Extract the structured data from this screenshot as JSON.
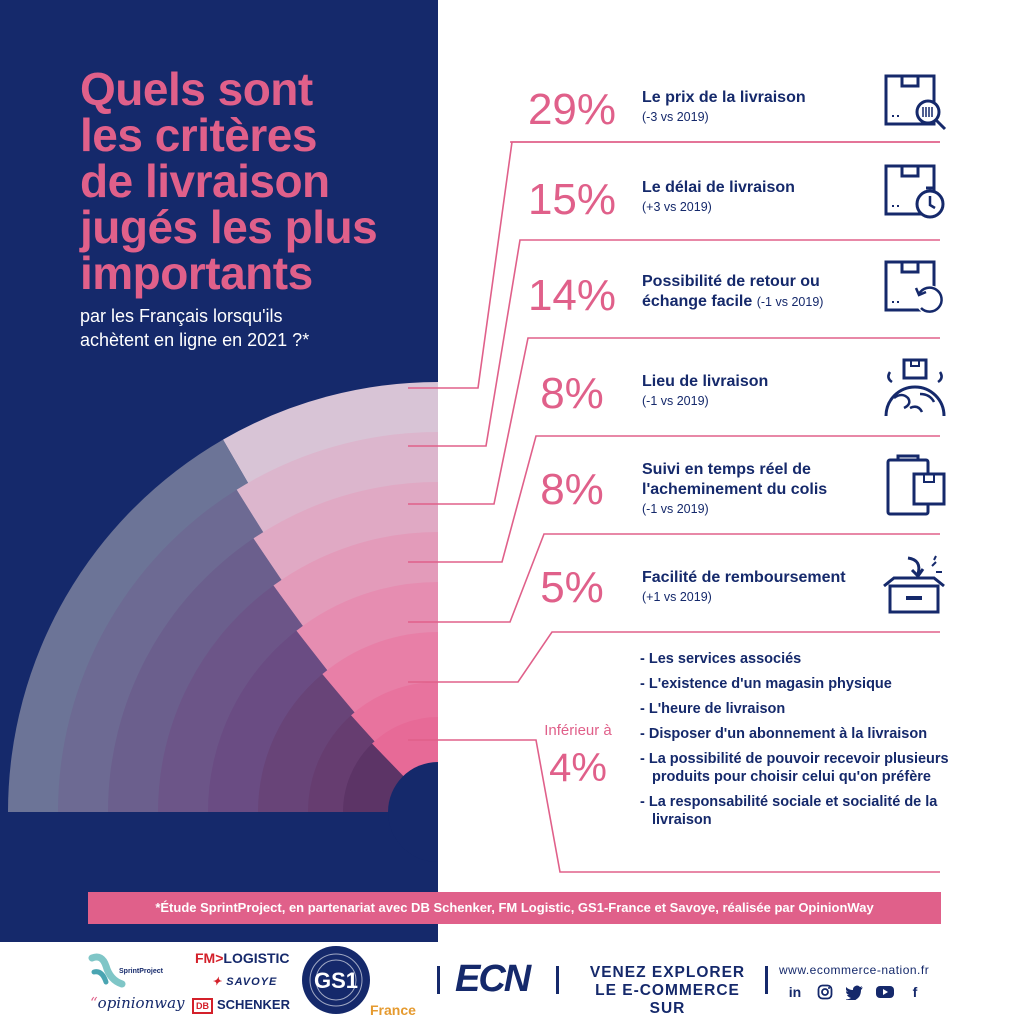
{
  "title_lines": [
    "Quels sont",
    "les critères",
    "de livraison",
    "jugés les plus",
    "importants"
  ],
  "subtitle_lines": [
    "par les Français lorsqu'ils",
    "achètent en ligne en 2021 ?*"
  ],
  "chart_data": {
    "type": "table",
    "items": [
      {
        "pct": "29%",
        "value": 29,
        "label": "Le prix de la livraison",
        "change": "(-3 vs 2019)",
        "icon": "box-barcode-magnifier-icon"
      },
      {
        "pct": "15%",
        "value": 15,
        "label": "Le délai de livraison",
        "change": "(+3 vs 2019)",
        "icon": "box-stopwatch-icon"
      },
      {
        "pct": "14%",
        "value": 14,
        "label_lines": [
          "Possibilité de retour ou",
          "échange facile"
        ],
        "change": "(-1 vs 2019)",
        "icon": "box-return-arrow-icon"
      },
      {
        "pct": "8%",
        "value": 8,
        "label": "Lieu de livraison",
        "change": "(-1 vs 2019)",
        "icon": "box-over-globe-icon"
      },
      {
        "pct": "8%",
        "value": 8,
        "label_lines": [
          "Suivi en temps réel de",
          "l'acheminement du colis"
        ],
        "change": "(-1 vs 2019)",
        "icon": "clipboard-box-icon"
      },
      {
        "pct": "5%",
        "value": 5,
        "label": "Facilité de remboursement",
        "change": "(+1 vs 2019)",
        "icon": "open-box-arrow-icon"
      }
    ],
    "minor": {
      "heading": "Inférieur à",
      "pct": "4%",
      "value": 4,
      "items": [
        "Les services associés",
        "L'existence d'un magasin physique",
        "L'heure de livraison",
        "Disposer d'un abonnement à la livraison",
        "La possibilité de pouvoir recevoir plusieurs produits pour choisir celui qu'on préfère",
        "La responsabilité sociale et socialité de la livraison"
      ]
    },
    "colors": {
      "navy": "#15296b",
      "pink": "#e0608a"
    }
  },
  "footnote": "*Étude SprintProject, en partenariat avec DB Schenker, FM Logistic, GS1-France et Savoye, réalisée par OpinionWay",
  "footer": {
    "sprintproject": "SprintProject",
    "opinionway": "opinionway",
    "fm_logistic_fm": "FM",
    "fm_logistic_rest": "LOGISTIC",
    "savoye": "SAVOYE",
    "db_box": "DB",
    "schenker": "SCHENKER",
    "gs1": "GS1",
    "gs1_france": "France",
    "ecn": "ECN",
    "venez_lines": [
      "VENEZ EXPLORER",
      "LE E-COMMERCE SUR"
    ],
    "website": "www.ecommerce-nation.fr",
    "socials": [
      "linkedin-icon",
      "instagram-icon",
      "twitter-icon",
      "youtube-icon",
      "facebook-icon"
    ]
  }
}
